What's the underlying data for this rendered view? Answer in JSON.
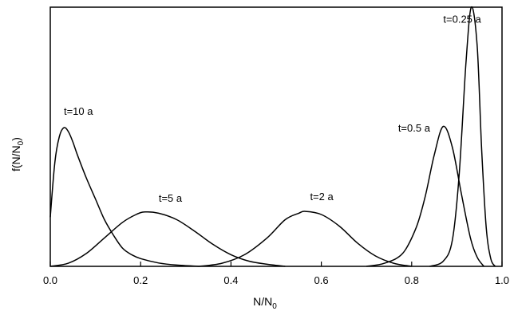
{
  "chart_data": {
    "type": "line",
    "title": "",
    "xlabel": "N/N",
    "xlabel_sub": "0",
    "ylabel": "f(N/N",
    "ylabel_sub": "0",
    "ylabel_close": ")",
    "xlim": [
      0.0,
      1.0
    ],
    "ylim": [
      0,
      1.0
    ],
    "xticks": [
      "0.0",
      "0.2",
      "0.4",
      "0.6",
      "0.8",
      "1.0"
    ],
    "xtick_values": [
      0.0,
      0.2,
      0.4,
      0.6,
      0.8,
      1.0
    ],
    "grid": false,
    "annotations": [
      {
        "text": "t=10 a",
        "x": 0.03,
        "y": 0.585
      },
      {
        "text": "t=5 a",
        "x": 0.24,
        "y": 0.25
      },
      {
        "text": "t=2 a",
        "x": 0.575,
        "y": 0.255
      },
      {
        "text": "t=0.5 a",
        "x": 0.77,
        "y": 0.52
      },
      {
        "text": "t=0.25 a",
        "x": 0.87,
        "y": 0.94
      }
    ],
    "series": [
      {
        "points": [
          [
            0.0,
            0.19
          ],
          [
            0.01,
            0.4
          ],
          [
            0.02,
            0.5
          ],
          [
            0.03,
            0.535
          ],
          [
            0.04,
            0.52
          ],
          [
            0.05,
            0.48
          ],
          [
            0.06,
            0.43
          ],
          [
            0.08,
            0.34
          ],
          [
            0.1,
            0.26
          ],
          [
            0.12,
            0.18
          ],
          [
            0.14,
            0.12
          ],
          [
            0.16,
            0.07
          ],
          [
            0.18,
            0.045
          ],
          [
            0.2,
            0.03
          ],
          [
            0.24,
            0.013
          ],
          [
            0.28,
            0.005
          ],
          [
            0.33,
            0.0
          ]
        ]
      },
      {
        "points": [
          [
            0.0,
            0.0
          ],
          [
            0.04,
            0.012
          ],
          [
            0.08,
            0.05
          ],
          [
            0.12,
            0.11
          ],
          [
            0.16,
            0.17
          ],
          [
            0.19,
            0.2
          ],
          [
            0.21,
            0.21
          ],
          [
            0.24,
            0.205
          ],
          [
            0.28,
            0.18
          ],
          [
            0.32,
            0.135
          ],
          [
            0.36,
            0.085
          ],
          [
            0.4,
            0.045
          ],
          [
            0.44,
            0.02
          ],
          [
            0.48,
            0.008
          ],
          [
            0.52,
            0.0
          ]
        ]
      },
      {
        "points": [
          [
            0.33,
            0.0
          ],
          [
            0.38,
            0.012
          ],
          [
            0.43,
            0.045
          ],
          [
            0.48,
            0.11
          ],
          [
            0.52,
            0.18
          ],
          [
            0.55,
            0.205
          ],
          [
            0.565,
            0.212
          ],
          [
            0.6,
            0.2
          ],
          [
            0.64,
            0.155
          ],
          [
            0.68,
            0.09
          ],
          [
            0.72,
            0.04
          ],
          [
            0.76,
            0.012
          ],
          [
            0.8,
            0.0
          ]
        ]
      },
      {
        "points": [
          [
            0.7,
            0.0
          ],
          [
            0.74,
            0.012
          ],
          [
            0.78,
            0.05
          ],
          [
            0.81,
            0.15
          ],
          [
            0.83,
            0.27
          ],
          [
            0.85,
            0.43
          ],
          [
            0.87,
            0.54
          ],
          [
            0.89,
            0.46
          ],
          [
            0.91,
            0.28
          ],
          [
            0.93,
            0.11
          ],
          [
            0.945,
            0.035
          ],
          [
            0.96,
            0.0
          ]
        ]
      },
      {
        "points": [
          [
            0.84,
            0.0
          ],
          [
            0.87,
            0.02
          ],
          [
            0.89,
            0.1
          ],
          [
            0.905,
            0.35
          ],
          [
            0.92,
            0.78
          ],
          [
            0.932,
            1.0
          ],
          [
            0.945,
            0.85
          ],
          [
            0.955,
            0.45
          ],
          [
            0.965,
            0.15
          ],
          [
            0.975,
            0.03
          ],
          [
            0.985,
            0.0
          ]
        ]
      }
    ]
  }
}
